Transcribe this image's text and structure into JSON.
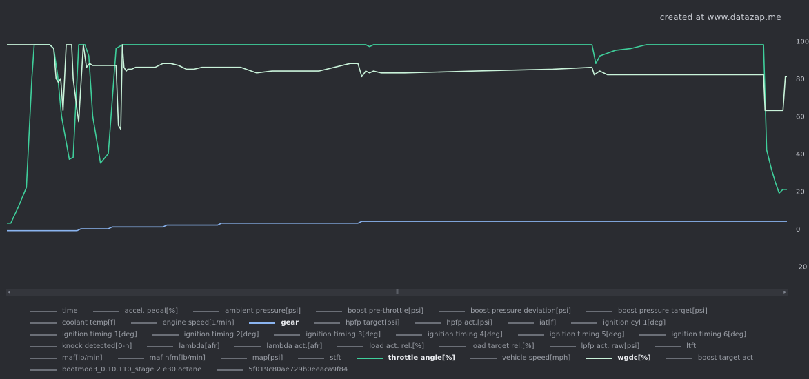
{
  "watermark": "created at www.datazap.me",
  "chart_data": {
    "type": "line",
    "x_range": [
      0,
      100
    ],
    "ylim": [
      -30,
      100
    ],
    "y_ticks": [
      100,
      80,
      60,
      40,
      20,
      0,
      -20
    ],
    "grid": false,
    "legend_position": "bottom",
    "series": [
      {
        "name": "throttle angle[%]",
        "color": "#3fcf9b",
        "x": [
          0,
          0.5,
          1.5,
          2.5,
          3.2,
          3.5,
          4.0,
          4.2,
          5.5,
          6.0,
          6.5,
          7.0,
          8.0,
          8.5,
          9.2,
          10.0,
          10.5,
          11.0,
          12.0,
          13.0,
          14.0,
          14.8,
          15.3,
          16.0,
          20,
          30,
          40,
          46.0,
          46.5,
          47.0,
          60,
          75.0,
          75.5,
          76.0,
          78.0,
          80.0,
          82.0,
          97.0,
          97.4,
          98.0,
          98.5,
          99.0,
          99.5,
          100
        ],
        "values": [
          3,
          3,
          12,
          22,
          80,
          98,
          98,
          98,
          98,
          96,
          82,
          60,
          37,
          38,
          98,
          98,
          92,
          60,
          35,
          40,
          96,
          98,
          98,
          98,
          98,
          98,
          98,
          98,
          97,
          98,
          98,
          98,
          88,
          92,
          95,
          96,
          98,
          98,
          42,
          32,
          25,
          19,
          21,
          21
        ]
      },
      {
        "name": "wgdc[%]",
        "color": "#c9f3da",
        "x": [
          0,
          4.5,
          5.5,
          6.0,
          6.3,
          6.6,
          6.9,
          7.2,
          7.6,
          8.3,
          8.5,
          9.0,
          9.2,
          9.8,
          10.2,
          10.6,
          11.0,
          11.5,
          11.8,
          12.2,
          13.0,
          14.0,
          14.3,
          14.6,
          14.8,
          15.0,
          15.3,
          15.5,
          16.0,
          16.5,
          17.0,
          17.5,
          19.0,
          20.0,
          21.0,
          22.0,
          23.0,
          24.0,
          25.0,
          27.0,
          28.0,
          29.0,
          30.0,
          32.0,
          34.0,
          40.0,
          44.0,
          45.0,
          45.5,
          46.0,
          46.5,
          47.0,
          48.0,
          49.0,
          50.0,
          51.0,
          60.0,
          70.0,
          75.0,
          75.3,
          76.0,
          76.5,
          77.0,
          97.0,
          97.2,
          99.5,
          99.8,
          100
        ],
        "values": [
          98,
          98,
          98,
          96,
          80,
          78,
          80,
          63,
          98,
          98,
          80,
          63,
          57,
          98,
          86,
          88,
          87,
          87,
          87,
          87,
          87,
          87,
          55,
          53,
          98,
          86,
          84,
          85,
          85,
          86,
          86,
          86,
          86,
          88,
          88,
          87,
          85,
          85,
          86,
          86,
          86,
          86,
          86,
          83,
          84,
          84,
          88,
          88,
          81,
          84,
          83,
          84,
          83,
          83,
          83,
          83,
          84,
          85,
          86,
          82,
          84,
          83,
          82,
          82,
          63,
          63,
          81,
          81
        ]
      },
      {
        "name": "gear",
        "color": "#8ab4f0",
        "x": [
          0,
          9.0,
          9.5,
          13.0,
          13.5,
          20.0,
          20.5,
          27.0,
          27.5,
          45.0,
          45.5,
          100
        ],
        "values": [
          -1,
          -1,
          0,
          0,
          1,
          1,
          2,
          2,
          3,
          3,
          4,
          4
        ]
      }
    ]
  },
  "scrollbar": {
    "left_arrow": "◂",
    "right_arrow": "▸",
    "grip": "|||"
  },
  "legend": [
    {
      "label": "time",
      "active": false,
      "color": "#6b6f77"
    },
    {
      "label": "accel. pedal[%]",
      "active": false,
      "color": "#6b6f77"
    },
    {
      "label": "ambient pressure[psi]",
      "active": false,
      "color": "#6b6f77"
    },
    {
      "label": "boost pre-throttle[psi]",
      "active": false,
      "color": "#6b6f77"
    },
    {
      "label": "boost pressure deviation[psi]",
      "active": false,
      "color": "#6b6f77"
    },
    {
      "label": "boost pressure target[psi]",
      "active": false,
      "color": "#6b6f77"
    },
    {
      "label": "coolant temp[f]",
      "active": false,
      "color": "#6b6f77"
    },
    {
      "label": "engine speed[1/min]",
      "active": false,
      "color": "#6b6f77"
    },
    {
      "label": "gear",
      "active": true,
      "color": "#8ab4f0"
    },
    {
      "label": "hpfp target[psi]",
      "active": false,
      "color": "#6b6f77"
    },
    {
      "label": "hpfp act.[psi]",
      "active": false,
      "color": "#6b6f77"
    },
    {
      "label": "iat[f]",
      "active": false,
      "color": "#6b6f77"
    },
    {
      "label": "ignition cyl 1[deg]",
      "active": false,
      "color": "#6b6f77"
    },
    {
      "label": "ignition timing 1[deg]",
      "active": false,
      "color": "#6b6f77"
    },
    {
      "label": "ignition timing 2[deg]",
      "active": false,
      "color": "#6b6f77"
    },
    {
      "label": "ignition timing 3[deg]",
      "active": false,
      "color": "#6b6f77"
    },
    {
      "label": "ignition timing 4[deg]",
      "active": false,
      "color": "#6b6f77"
    },
    {
      "label": "ignition timing 5[deg]",
      "active": false,
      "color": "#6b6f77"
    },
    {
      "label": "ignition timing 6[deg]",
      "active": false,
      "color": "#6b6f77"
    },
    {
      "label": "knock detected[0-n]",
      "active": false,
      "color": "#6b6f77"
    },
    {
      "label": "lambda[afr]",
      "active": false,
      "color": "#6b6f77"
    },
    {
      "label": "lambda act.[afr]",
      "active": false,
      "color": "#6b6f77"
    },
    {
      "label": "load act. rel.[%]",
      "active": false,
      "color": "#6b6f77"
    },
    {
      "label": "load target rel.[%]",
      "active": false,
      "color": "#6b6f77"
    },
    {
      "label": "lpfp act. raw[psi]",
      "active": false,
      "color": "#6b6f77"
    },
    {
      "label": "ltft",
      "active": false,
      "color": "#6b6f77"
    },
    {
      "label": "maf[lb/min]",
      "active": false,
      "color": "#6b6f77"
    },
    {
      "label": "maf hfm[lb/min]",
      "active": false,
      "color": "#6b6f77"
    },
    {
      "label": "map[psi]",
      "active": false,
      "color": "#6b6f77"
    },
    {
      "label": "stft",
      "active": false,
      "color": "#6b6f77"
    },
    {
      "label": "throttle angle[%]",
      "active": true,
      "color": "#3fcf9b"
    },
    {
      "label": "vehicle speed[mph]",
      "active": false,
      "color": "#6b6f77"
    },
    {
      "label": "wgdc[%]",
      "active": true,
      "color": "#c9f3da"
    },
    {
      "label": "boost target act",
      "active": false,
      "color": "#6b6f77"
    },
    {
      "label": "bootmod3_0.10.110_stage 2 e30 octane",
      "active": false,
      "color": "#6b6f77"
    },
    {
      "label": "5f019c80ae729b0eeaca9f84",
      "active": false,
      "color": "#6b6f77"
    }
  ]
}
